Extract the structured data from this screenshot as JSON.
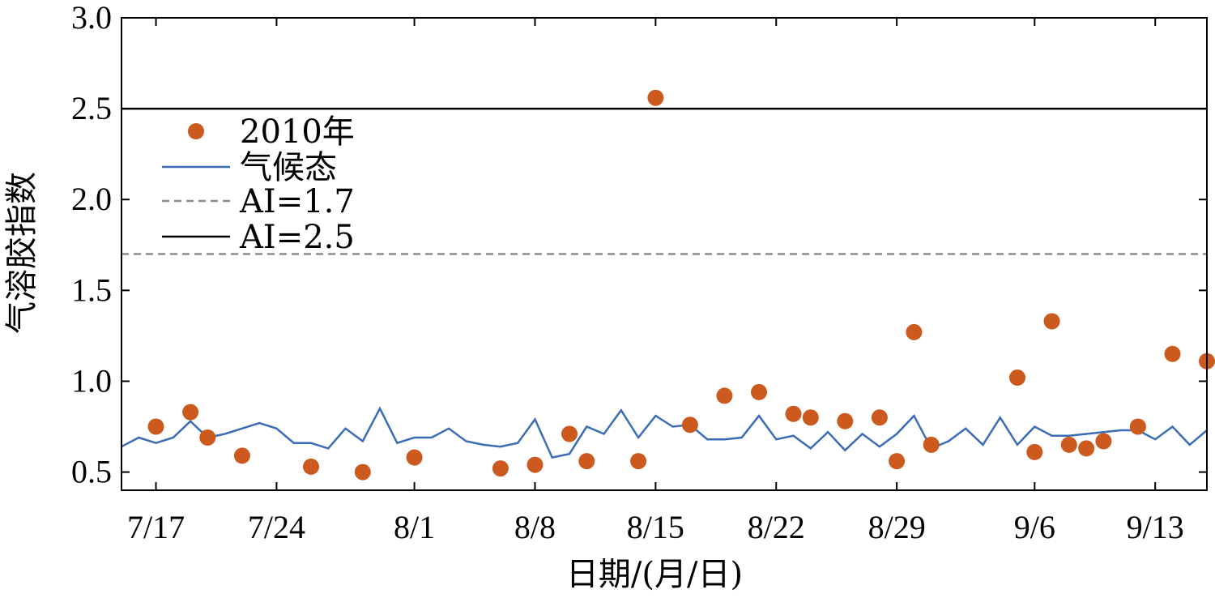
{
  "chart_data": {
    "type": "line",
    "xlabel": "日期/(月/日)",
    "ylabel": "气溶胶指数",
    "ylim": [
      0.4,
      3.0
    ],
    "yticks": [
      0.5,
      1.0,
      1.5,
      2.0,
      2.5,
      3.0
    ],
    "ytick_labels": [
      "0.5",
      "1.0",
      "1.5",
      "2.0",
      "2.5",
      "3.0"
    ],
    "xlim": [
      "2010-07-15",
      "2010-09-16"
    ],
    "xticks": [
      "2010-07-17",
      "2010-07-24",
      "2010-08-01",
      "2010-08-08",
      "2010-08-15",
      "2010-08-22",
      "2010-08-29",
      "2010-09-06",
      "2010-09-13"
    ],
    "xtick_labels": [
      "7/17",
      "7/24",
      "8/1",
      "8/8",
      "8/15",
      "8/22",
      "8/29",
      "9/6",
      "9/13"
    ],
    "legend_position": "upper-left",
    "grid": false,
    "series": [
      {
        "name": "2010年",
        "kind": "scatter",
        "color": "#cc5a1f",
        "x": [
          "2010-07-17",
          "2010-07-19",
          "2010-07-20",
          "2010-07-22",
          "2010-07-26",
          "2010-07-29",
          "2010-08-01",
          "2010-08-06",
          "2010-08-08",
          "2010-08-10",
          "2010-08-11",
          "2010-08-14",
          "2010-08-15",
          "2010-08-17",
          "2010-08-19",
          "2010-08-21",
          "2010-08-23",
          "2010-08-24",
          "2010-08-26",
          "2010-08-28",
          "2010-08-29",
          "2010-08-30",
          "2010-08-31",
          "2010-09-05",
          "2010-09-06",
          "2010-09-07",
          "2010-09-08",
          "2010-09-09",
          "2010-09-10",
          "2010-09-12",
          "2010-09-14",
          "2010-09-16"
        ],
        "values": [
          0.75,
          0.83,
          0.69,
          0.59,
          0.53,
          0.5,
          0.58,
          0.52,
          0.54,
          0.71,
          0.56,
          0.56,
          2.56,
          0.76,
          0.92,
          0.94,
          0.82,
          0.8,
          0.78,
          0.8,
          0.56,
          1.27,
          0.65,
          1.02,
          0.61,
          1.33,
          0.65,
          0.63,
          0.67,
          0.75,
          1.15,
          1.11
        ]
      },
      {
        "name": "气候态",
        "kind": "line",
        "color": "#3a6db5",
        "x": [
          "2010-07-15",
          "2010-07-16",
          "2010-07-17",
          "2010-07-18",
          "2010-07-19",
          "2010-07-20",
          "2010-07-21",
          "2010-07-22",
          "2010-07-23",
          "2010-07-24",
          "2010-07-25",
          "2010-07-26",
          "2010-07-27",
          "2010-07-28",
          "2010-07-29",
          "2010-07-30",
          "2010-07-31",
          "2010-08-01",
          "2010-08-02",
          "2010-08-03",
          "2010-08-04",
          "2010-08-05",
          "2010-08-06",
          "2010-08-07",
          "2010-08-08",
          "2010-08-09",
          "2010-08-10",
          "2010-08-11",
          "2010-08-12",
          "2010-08-13",
          "2010-08-14",
          "2010-08-15",
          "2010-08-16",
          "2010-08-17",
          "2010-08-18",
          "2010-08-19",
          "2010-08-20",
          "2010-08-21",
          "2010-08-22",
          "2010-08-23",
          "2010-08-24",
          "2010-08-25",
          "2010-08-26",
          "2010-08-27",
          "2010-08-28",
          "2010-08-29",
          "2010-08-30",
          "2010-08-31",
          "2010-09-01",
          "2010-09-02",
          "2010-09-03",
          "2010-09-04",
          "2010-09-05",
          "2010-09-06",
          "2010-09-07",
          "2010-09-08",
          "2010-09-09",
          "2010-09-10",
          "2010-09-11",
          "2010-09-12",
          "2010-09-13",
          "2010-09-14",
          "2010-09-15",
          "2010-09-16"
        ],
        "values": [
          0.64,
          0.69,
          0.66,
          0.69,
          0.78,
          0.69,
          0.71,
          0.74,
          0.77,
          0.74,
          0.66,
          0.66,
          0.63,
          0.74,
          0.67,
          0.85,
          0.66,
          0.69,
          0.69,
          0.74,
          0.67,
          0.65,
          0.64,
          0.66,
          0.79,
          0.58,
          0.6,
          0.75,
          0.71,
          0.84,
          0.69,
          0.81,
          0.75,
          0.76,
          0.68,
          0.68,
          0.69,
          0.81,
          0.68,
          0.7,
          0.63,
          0.72,
          0.62,
          0.71,
          0.64,
          0.71,
          0.81,
          0.63,
          0.67,
          0.74,
          0.65,
          0.8,
          0.65,
          0.75,
          0.7,
          0.7,
          0.71,
          0.72,
          0.73,
          0.73,
          0.68,
          0.75,
          0.65,
          0.73
        ]
      },
      {
        "name": "AI=1.7",
        "kind": "hline",
        "color": "#8c8c8c",
        "y": 1.7
      },
      {
        "name": "AI=2.5",
        "kind": "hline",
        "color": "#000000",
        "y": 2.5
      }
    ]
  }
}
